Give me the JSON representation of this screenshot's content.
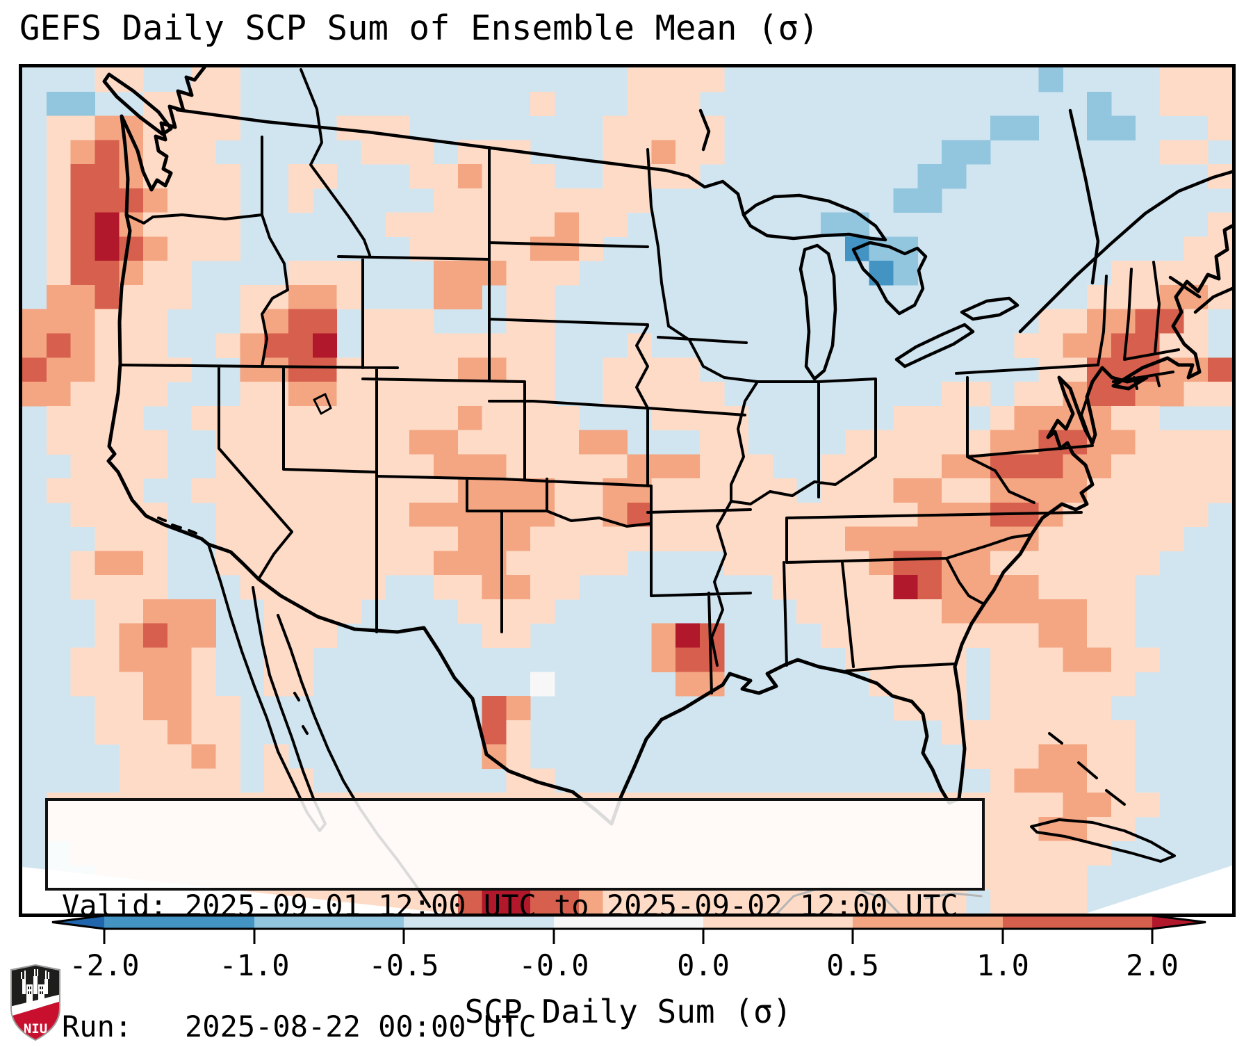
{
  "title": "GEFS Daily SCP Sum of Ensemble Mean (σ)",
  "info_box": {
    "valid_line": "Valid: 2025-09-01 12:00 UTC to 2025-09-02 12:00 UTC",
    "run_line": "Run:   2025-08-22 00:00 UTC"
  },
  "colorbar": {
    "xlabel": "SCP Daily Sum (σ)",
    "labels": [
      "-2.0",
      "-1.0",
      "-0.5",
      "-0.0",
      "0.0",
      "0.5",
      "1.0",
      "2.0"
    ],
    "positions": [
      150,
      366,
      581,
      797,
      1012,
      1227,
      1443,
      1658
    ],
    "segment_colors": [
      "#4393c3",
      "#92c5de",
      "#d1e5f0",
      "#f7f7f7",
      "#fddbc7",
      "#f4a582",
      "#d6604d"
    ],
    "arrow_left_color": "#2166ac",
    "arrow_right_color": "#b2182b"
  },
  "logo": {
    "text": "NIU",
    "shield_black": "#1d1d1b",
    "shield_red": "#c8102e"
  },
  "map": {
    "background": "#d1e5f0",
    "palette": {
      "0": "#2166ac",
      "1": "#4393c3",
      "2": "#92c5de",
      "3": "#d1e5f0",
      "4": "#f7f7f7",
      "5": "#fddbc7",
      "6": "#f4a582",
      "7": "#d6604d",
      "8": "#b2182b"
    },
    "grid_rows": [
      "33355335533333333333333335555333333333333323333555",
      "32233555533333333333353335553333333333333333233555",
      "35566555533335553333333355555333333333332233223335",
      "35676555333333555355533355655333333333223333333553",
      "35776555533553335565553355553333333332233333333335",
      "35777655533533333555555555333333333322333333333333",
      "35786555533333355555556553333333322333333333333335",
      "35787655533333335555566533333333331223333333333355",
      "35776553333555333666555333333333333123333333355555",
      "36675553355665333663553333333333333333333333555665",
      "66655533356773555333553333333333333333333355667753",
      "67655533567783555555553335333333333333333556677553",
      "76655553366775555566553355553333333333333355777667",
      "66555533355665555555553355555333333333553556776655",
      "35555335555555555565555333555533333355535666655333",
      "35555533555555556655555663335533335555556677665555",
      "33555533555555555666555556665553355555667776655555",
      "35555335555555555566665566555555355566556666555555",
      "33555533555555556666665567555555555556667765555553",
      "33355533555555555566655555555555556666666655555533",
      "33566533555555555666555553333555555677665555555333",
      "33555533355555533556655333333335555587666655553333",
      "33355666335555333355553333333333555555666666553333",
      "33356766335553333335533333687333355555555566553333",
      "33556665335533333333333333677333335555535556655333",
      "33555665335533333333343333366333333555535555553333",
      "33355665533333333337633333333333333355535555533333",
      "33355565533333333337533333333333333333555555553333",
      "33335556535333333336533333333333333333355566553333",
      "33335555535533333333553333333333333333335666553333",
      "35555555555555555555555555555555555555555556655333",
      "35555555555555555555555555555555555555555566553333",
      "33555555555555555555555555555555555555555555533333",
      "33355555555555555555555555555555555555555555333333",
      "33335555555555555578877655555555555555535555333333"
    ]
  },
  "chart_data": {
    "type": "heatmap",
    "title": "GEFS Daily SCP Sum of Ensemble Mean (σ)",
    "colorbar_label": "SCP Daily Sum (σ)",
    "colorbar_ticks": [
      -2.0,
      -1.0,
      -0.5,
      -0.0,
      0.0,
      0.5,
      1.0,
      2.0
    ],
    "color_scale": [
      "#2166ac",
      "#4393c3",
      "#92c5de",
      "#d1e5f0",
      "#f7f7f7",
      "#fddbc7",
      "#f4a582",
      "#d6604d",
      "#b2182b"
    ],
    "valid_period": "2025-09-01 12:00 UTC to 2025-09-02 12:00 UTC",
    "model_run": "2025-08-22 00:00 UTC",
    "region": "CONUS (GEFS domain, Lambert-style map)",
    "notable_features": [
      "Strong positive SCP anomaly band (+1 to +2σ) along the Pacific Northwest / Oregon coast",
      "Positive anomaly bullseye (~+1σ) over central Utah",
      "Positive anomalies over eastern Texas with a +2σ spot near the Texas-Louisiana border",
      "Large positive anomaly band over the western Atlantic off the Southeast coast and east Florida",
      "Weak negative anomalies (−0.5σ) around the Great Lakes, Ontario and the Northeast",
      "Strong positive cells along the bottom edge over central Mexico"
    ],
    "grid_encoding": "map.grid_rows: 50x35 cells, chars 0-8 index map.palette (RdBu_r classes from <-2.0 to >+2.0 σ)"
  }
}
